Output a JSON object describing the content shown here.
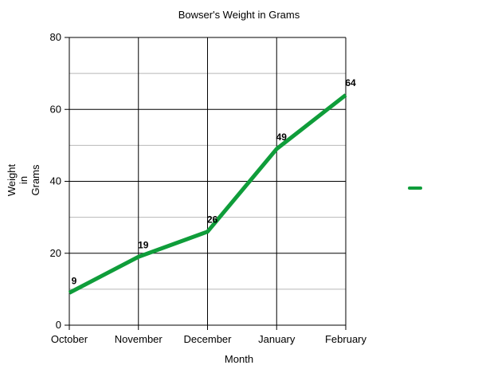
{
  "chart_data": {
    "type": "line",
    "title": "Bowser's Weight in Grams",
    "xlabel": "Month",
    "ylabel": [
      "Weight",
      "in",
      "Grams"
    ],
    "categories": [
      "October",
      "November",
      "December",
      "January",
      "February"
    ],
    "series": [
      {
        "values": [
          9,
          19,
          26,
          49,
          64
        ],
        "color": "#0f9d3a"
      }
    ],
    "ylim": [
      0,
      80
    ],
    "y_ticks": [
      0,
      20,
      40,
      60,
      80
    ],
    "y_minor_ticks": [
      10,
      30,
      50,
      70
    ],
    "data_labels": [
      "9",
      "19",
      "26",
      "49",
      "64"
    ],
    "grid": true,
    "legend": "right",
    "colors": {
      "major_grid": "#000000",
      "minor_grid": "#b8b8b8",
      "series_line": "#0f9d3a"
    }
  }
}
